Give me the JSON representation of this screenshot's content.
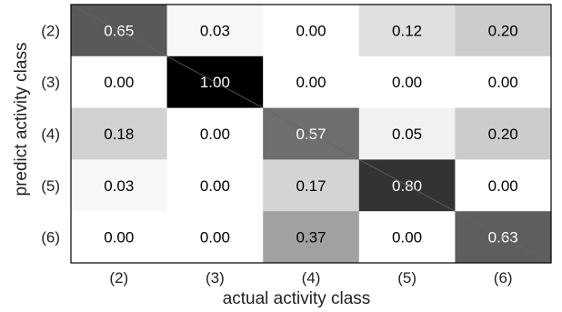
{
  "chart_data": {
    "type": "heatmap",
    "title": "",
    "xlabel": "actual activity class",
    "ylabel": "predict activity class",
    "x_categories": [
      "(2)",
      "(3)",
      "(4)",
      "(5)",
      "(6)"
    ],
    "y_categories": [
      "(2)",
      "(3)",
      "(4)",
      "(5)",
      "(6)"
    ],
    "values": [
      [
        0.65,
        0.03,
        0.0,
        0.12,
        0.2
      ],
      [
        0.0,
        1.0,
        0.0,
        0.0,
        0.0
      ],
      [
        0.18,
        0.0,
        0.57,
        0.05,
        0.2
      ],
      [
        0.03,
        0.0,
        0.17,
        0.8,
        0.0
      ],
      [
        0.0,
        0.0,
        0.37,
        0.0,
        0.63
      ]
    ],
    "value_range": [
      0,
      1
    ],
    "colormap": "white-to-black",
    "diagonal_line": true,
    "colors": {
      "low": "#ffffff",
      "high": "#000000",
      "dark_text": "#000000",
      "light_text": "#ffffff"
    }
  }
}
